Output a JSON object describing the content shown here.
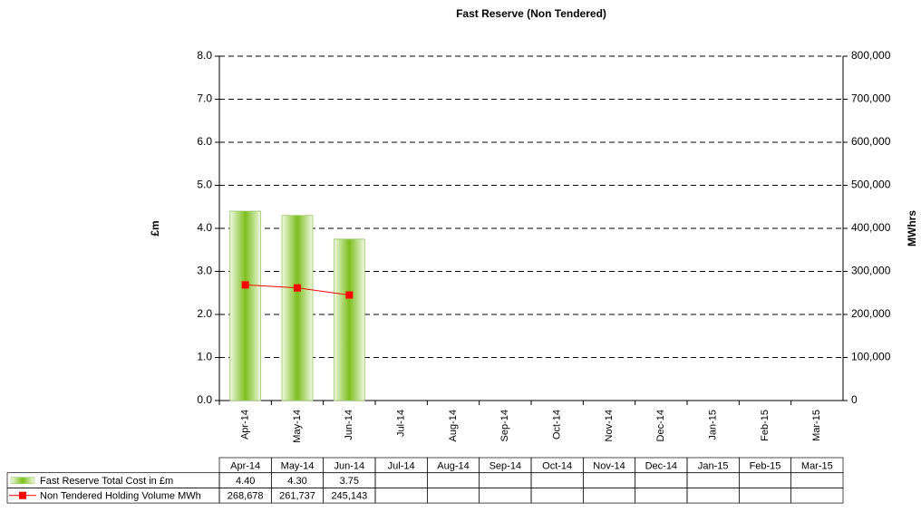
{
  "chart_data": {
    "type": "bar",
    "title": "Fast Reserve (Non Tendered)",
    "ylabel": "£m",
    "y2label": "MWhrs",
    "categories": [
      "Apr-14",
      "May-14",
      "Jun-14",
      "Jul-14",
      "Aug-14",
      "Sep-14",
      "Oct-14",
      "Nov-14",
      "Dec-14",
      "Jan-15",
      "Feb-15",
      "Mar-15"
    ],
    "series": [
      {
        "name": "Fast Reserve Total Cost in £m",
        "type": "bar",
        "color": "#8cc63f",
        "values": [
          4.4,
          4.3,
          3.75,
          null,
          null,
          null,
          null,
          null,
          null,
          null,
          null,
          null
        ],
        "value_labels": [
          "4.40",
          "4.30",
          "3.75",
          null,
          null,
          null,
          null,
          null,
          null,
          null,
          null,
          null
        ]
      },
      {
        "name": "Non Tendered Holding Volume MWh",
        "type": "line",
        "axis": "y2",
        "color": "#ff0000",
        "values": [
          268678,
          261737,
          245143,
          null,
          null,
          null,
          null,
          null,
          null,
          null,
          null,
          null
        ],
        "value_labels": [
          "268,678",
          "261,737",
          "245,143",
          null,
          null,
          null,
          null,
          null,
          null,
          null,
          null,
          null
        ]
      }
    ],
    "ylim": [
      0,
      8
    ],
    "yticks": [
      {
        "value": 0,
        "label": "0.0"
      },
      {
        "value": 1,
        "label": "1.0"
      },
      {
        "value": 2,
        "label": "2.0"
      },
      {
        "value": 3,
        "label": "3.0"
      },
      {
        "value": 4,
        "label": "4.0"
      },
      {
        "value": 5,
        "label": "5.0"
      },
      {
        "value": 6,
        "label": "6.0"
      },
      {
        "value": 7,
        "label": "7.0"
      },
      {
        "value": 8,
        "label": "8.0"
      }
    ],
    "y2lim": [
      0,
      800000
    ],
    "y2ticks": [
      0,
      {
        "value": 100000,
        "label": "100,000"
      },
      {
        "value": 200000,
        "label": "200,000"
      },
      {
        "value": 300000,
        "label": "300,000"
      },
      {
        "value": 400000,
        "label": "400,000"
      },
      {
        "value": 500000,
        "label": "500,000"
      },
      {
        "value": 600000,
        "label": "600,000"
      },
      {
        "value": 700000,
        "label": "700,000"
      },
      {
        "value": 800000,
        "label": "800,000"
      }
    ],
    "grid": true
  }
}
